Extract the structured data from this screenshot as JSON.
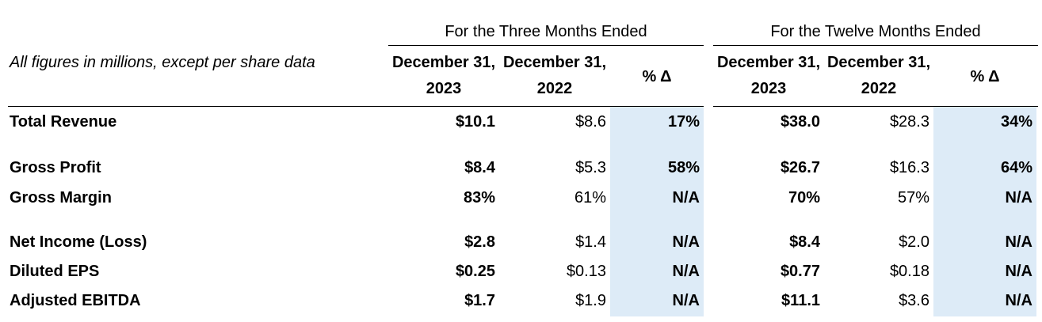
{
  "table": {
    "note": "All figures in millions, except per share data",
    "groups": [
      "For the Three Months Ended",
      "For the Twelve Months Ended"
    ],
    "columns": [
      "December 31, 2023",
      "December 31, 2022",
      "% Δ",
      "December 31, 2023",
      "December 31, 2022",
      "% Δ"
    ],
    "rows": [
      {
        "label": "Total Revenue",
        "values": [
          "$10.1",
          "$8.6",
          "17%",
          "$38.0",
          "$28.3",
          "34%"
        ]
      },
      {
        "label": "Gross Profit",
        "values": [
          "$8.4",
          "$5.3",
          "58%",
          "$26.7",
          "$16.3",
          "64%"
        ]
      },
      {
        "label": "Gross Margin",
        "values": [
          "83%",
          "61%",
          "N/A",
          "70%",
          "57%",
          "N/A"
        ]
      },
      {
        "label": "Net Income (Loss)",
        "values": [
          "$2.8",
          "$1.4",
          "N/A",
          "$8.4",
          "$2.0",
          "N/A"
        ]
      },
      {
        "label": "Diluted EPS",
        "values": [
          "$0.25",
          "$0.13",
          "N/A",
          "$0.77",
          "$0.18",
          "N/A"
        ]
      },
      {
        "label": "Adjusted EBITDA",
        "values": [
          "$1.7",
          "$1.9",
          "N/A",
          "$11.1",
          "$3.6",
          "N/A"
        ]
      }
    ]
  }
}
